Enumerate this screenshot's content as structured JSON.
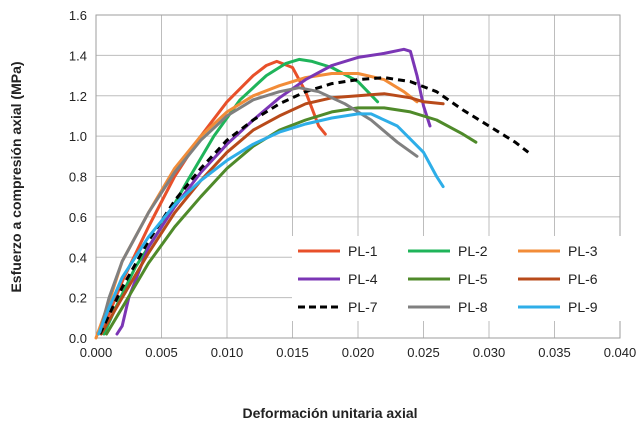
{
  "chart_data": {
    "type": "line",
    "title": "",
    "xlabel": "Deformación unitaria axial",
    "ylabel": "Esfuerzo a compresión axial (MPa)",
    "xlim": [
      0,
      0.04
    ],
    "ylim": [
      0,
      1.6
    ],
    "x_ticks": [
      "0.000",
      "0.005",
      "0.010",
      "0.015",
      "0.020",
      "0.025",
      "0.030",
      "0.035",
      "0.040"
    ],
    "y_ticks": [
      "0.0",
      "0.2",
      "0.4",
      "0.6",
      "0.8",
      "1.0",
      "1.2",
      "1.4",
      "1.6"
    ],
    "grid": true,
    "legend_position": "bottom-right (inside plot)",
    "series": [
      {
        "name": "PL-1",
        "color": "#E8502A",
        "dashed": false,
        "points": [
          [
            0.0002,
            0.02
          ],
          [
            0.001,
            0.12
          ],
          [
            0.002,
            0.28
          ],
          [
            0.004,
            0.55
          ],
          [
            0.006,
            0.8
          ],
          [
            0.008,
            1.0
          ],
          [
            0.01,
            1.17
          ],
          [
            0.012,
            1.3
          ],
          [
            0.013,
            1.35
          ],
          [
            0.0138,
            1.37
          ],
          [
            0.015,
            1.34
          ],
          [
            0.016,
            1.22
          ],
          [
            0.017,
            1.05
          ],
          [
            0.0175,
            1.01
          ]
        ]
      },
      {
        "name": "PL-2",
        "color": "#1FB45A",
        "dashed": false,
        "points": [
          [
            0.0006,
            0.02
          ],
          [
            0.0015,
            0.15
          ],
          [
            0.003,
            0.35
          ],
          [
            0.005,
            0.55
          ],
          [
            0.007,
            0.78
          ],
          [
            0.009,
            1.0
          ],
          [
            0.011,
            1.18
          ],
          [
            0.013,
            1.3
          ],
          [
            0.0145,
            1.36
          ],
          [
            0.0155,
            1.38
          ],
          [
            0.0165,
            1.37
          ],
          [
            0.018,
            1.34
          ],
          [
            0.02,
            1.27
          ],
          [
            0.0215,
            1.17
          ]
        ]
      },
      {
        "name": "PL-3",
        "color": "#F28C38",
        "dashed": false,
        "points": [
          [
            0.0,
            0.0
          ],
          [
            0.001,
            0.18
          ],
          [
            0.002,
            0.38
          ],
          [
            0.004,
            0.62
          ],
          [
            0.006,
            0.84
          ],
          [
            0.008,
            1.0
          ],
          [
            0.01,
            1.12
          ],
          [
            0.012,
            1.2
          ],
          [
            0.014,
            1.25
          ],
          [
            0.016,
            1.29
          ],
          [
            0.018,
            1.31
          ],
          [
            0.02,
            1.31
          ],
          [
            0.022,
            1.28
          ],
          [
            0.0235,
            1.22
          ],
          [
            0.0245,
            1.17
          ]
        ]
      },
      {
        "name": "PL-4",
        "color": "#7B36B5",
        "dashed": false,
        "points": [
          [
            0.0016,
            0.02
          ],
          [
            0.002,
            0.06
          ],
          [
            0.0025,
            0.2
          ],
          [
            0.004,
            0.45
          ],
          [
            0.006,
            0.65
          ],
          [
            0.008,
            0.82
          ],
          [
            0.01,
            0.96
          ],
          [
            0.012,
            1.08
          ],
          [
            0.014,
            1.19
          ],
          [
            0.016,
            1.28
          ],
          [
            0.018,
            1.35
          ],
          [
            0.02,
            1.39
          ],
          [
            0.022,
            1.41
          ],
          [
            0.0235,
            1.43
          ],
          [
            0.024,
            1.42
          ],
          [
            0.0245,
            1.3
          ],
          [
            0.025,
            1.15
          ],
          [
            0.0255,
            1.05
          ]
        ]
      },
      {
        "name": "PL-5",
        "color": "#4F8A2A",
        "dashed": false,
        "points": [
          [
            0.0008,
            0.02
          ],
          [
            0.002,
            0.15
          ],
          [
            0.004,
            0.37
          ],
          [
            0.006,
            0.55
          ],
          [
            0.008,
            0.7
          ],
          [
            0.01,
            0.84
          ],
          [
            0.012,
            0.95
          ],
          [
            0.014,
            1.03
          ],
          [
            0.016,
            1.08
          ],
          [
            0.018,
            1.12
          ],
          [
            0.02,
            1.14
          ],
          [
            0.022,
            1.14
          ],
          [
            0.024,
            1.12
          ],
          [
            0.026,
            1.08
          ],
          [
            0.028,
            1.01
          ],
          [
            0.029,
            0.97
          ]
        ]
      },
      {
        "name": "PL-6",
        "color": "#B84A1A",
        "dashed": false,
        "points": [
          [
            0.0004,
            0.02
          ],
          [
            0.002,
            0.2
          ],
          [
            0.004,
            0.42
          ],
          [
            0.006,
            0.62
          ],
          [
            0.008,
            0.78
          ],
          [
            0.01,
            0.92
          ],
          [
            0.012,
            1.03
          ],
          [
            0.014,
            1.1
          ],
          [
            0.016,
            1.16
          ],
          [
            0.018,
            1.19
          ],
          [
            0.02,
            1.2
          ],
          [
            0.022,
            1.21
          ],
          [
            0.024,
            1.19
          ],
          [
            0.025,
            1.17
          ],
          [
            0.0265,
            1.16
          ]
        ]
      },
      {
        "name": "PL-7",
        "color": "#000000",
        "dashed": true,
        "points": [
          [
            0.0003,
            0.02
          ],
          [
            0.002,
            0.25
          ],
          [
            0.004,
            0.48
          ],
          [
            0.006,
            0.68
          ],
          [
            0.008,
            0.84
          ],
          [
            0.01,
            0.98
          ],
          [
            0.012,
            1.08
          ],
          [
            0.014,
            1.16
          ],
          [
            0.016,
            1.22
          ],
          [
            0.018,
            1.26
          ],
          [
            0.02,
            1.28
          ],
          [
            0.022,
            1.29
          ],
          [
            0.024,
            1.27
          ],
          [
            0.026,
            1.22
          ],
          [
            0.028,
            1.13
          ],
          [
            0.03,
            1.05
          ],
          [
            0.032,
            0.97
          ],
          [
            0.033,
            0.92
          ]
        ]
      },
      {
        "name": "PL-8",
        "color": "#808080",
        "dashed": false,
        "points": [
          [
            0.0003,
            0.03
          ],
          [
            0.001,
            0.2
          ],
          [
            0.002,
            0.38
          ],
          [
            0.004,
            0.62
          ],
          [
            0.006,
            0.82
          ],
          [
            0.008,
            0.98
          ],
          [
            0.01,
            1.1
          ],
          [
            0.012,
            1.18
          ],
          [
            0.014,
            1.22
          ],
          [
            0.0155,
            1.24
          ],
          [
            0.017,
            1.22
          ],
          [
            0.019,
            1.16
          ],
          [
            0.021,
            1.08
          ],
          [
            0.023,
            0.97
          ],
          [
            0.0245,
            0.9
          ]
        ]
      },
      {
        "name": "PL-9",
        "color": "#2EAEE8",
        "dashed": false,
        "points": [
          [
            0.0002,
            0.02
          ],
          [
            0.001,
            0.15
          ],
          [
            0.002,
            0.3
          ],
          [
            0.004,
            0.5
          ],
          [
            0.006,
            0.66
          ],
          [
            0.008,
            0.78
          ],
          [
            0.01,
            0.88
          ],
          [
            0.012,
            0.96
          ],
          [
            0.014,
            1.02
          ],
          [
            0.016,
            1.06
          ],
          [
            0.018,
            1.09
          ],
          [
            0.02,
            1.11
          ],
          [
            0.021,
            1.11
          ],
          [
            0.023,
            1.05
          ],
          [
            0.025,
            0.92
          ],
          [
            0.026,
            0.8
          ],
          [
            0.0265,
            0.75
          ]
        ]
      }
    ]
  }
}
